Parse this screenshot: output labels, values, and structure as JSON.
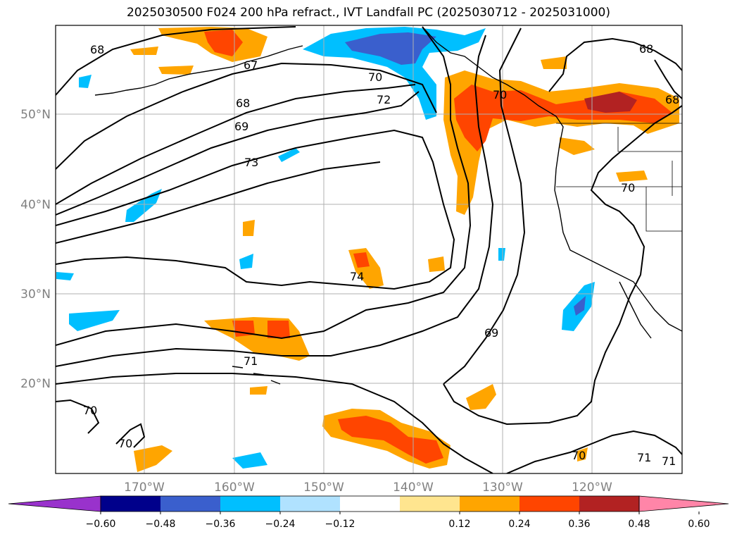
{
  "title": "2025030500 F024 200 hPa refract., IVT Landfall PC (2025030712 - 2025031000)",
  "map": {
    "lat_labels": [
      "50°N",
      "40°N",
      "30°N",
      "20°N"
    ],
    "lon_labels": [
      "170°W",
      "160°W",
      "150°W",
      "140°W",
      "130°W",
      "120°W"
    ],
    "contour_labels": [
      "68",
      "67",
      "68",
      "69",
      "70",
      "72",
      "73",
      "70",
      "74",
      "69",
      "71",
      "70",
      "70",
      "70",
      "71",
      "71",
      "68",
      "70",
      "68"
    ]
  },
  "colorbar": {
    "tick_labels": [
      "−0.60",
      "−0.48",
      "−0.36",
      "−0.24",
      "−0.12",
      "0.12",
      "0.24",
      "0.36",
      "0.48",
      "0.60"
    ],
    "colors": [
      "#9932cc",
      "#00008b",
      "#3a5fcd",
      "#00bfff",
      "#b0e2ff",
      "#ffffff",
      "#ffe58f",
      "#ffa500",
      "#ff4500",
      "#b22222",
      "#ff85a8"
    ]
  }
}
